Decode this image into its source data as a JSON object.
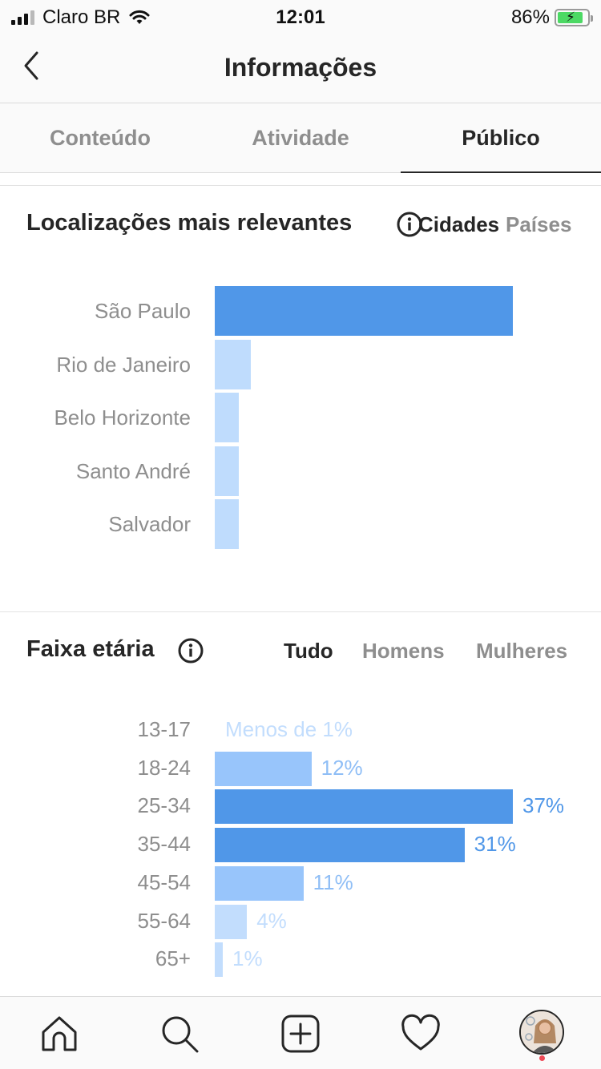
{
  "status_bar": {
    "carrier": "Claro BR",
    "time": "12:01",
    "battery_percent": "86%",
    "battery_level": 0.86
  },
  "nav": {
    "title": "Informações"
  },
  "tabs": [
    {
      "label": "Conteúdo",
      "active": false
    },
    {
      "label": "Atividade",
      "active": false
    },
    {
      "label": "Público",
      "active": true
    }
  ],
  "locations": {
    "title": "Localizações mais relevantes",
    "filters": [
      {
        "label": "Cidades",
        "active": true
      },
      {
        "label": "Países",
        "active": false
      }
    ],
    "cities": [
      "São Paulo",
      "Rio de Janeiro",
      "Belo Horizonte",
      "Santo André",
      "Salvador"
    ]
  },
  "age": {
    "title": "Faixa etária",
    "filters": [
      {
        "label": "Tudo",
        "active": true
      },
      {
        "label": "Homens",
        "active": false
      },
      {
        "label": "Mulheres",
        "active": false
      }
    ],
    "ranges": [
      "13-17",
      "18-24",
      "25-34",
      "35-44",
      "45-54",
      "55-64",
      "65+"
    ],
    "value_labels": [
      "Menos de 1%",
      "12%",
      "37%",
      "31%",
      "11%",
      "4%",
      "1%"
    ]
  },
  "chart_data": [
    {
      "type": "bar",
      "orientation": "horizontal",
      "categories": [
        "São Paulo",
        "Rio de Janeiro",
        "Belo Horizonte",
        "Santo André",
        "Salvador"
      ],
      "values": [
        100,
        12,
        8,
        8,
        8
      ],
      "highlight_color": "#5097e8",
      "base_color": "#bfdcfd"
    },
    {
      "type": "bar",
      "orientation": "horizontal",
      "categories": [
        "13-17",
        "18-24",
        "25-34",
        "35-44",
        "45-54",
        "55-64",
        "65+"
      ],
      "values": [
        0,
        12,
        37,
        31,
        11,
        4,
        1
      ],
      "data_labels": [
        "Menos de 1%",
        "12%",
        "37%",
        "31%",
        "11%",
        "4%",
        "1%"
      ],
      "highlight_color": "#5097e8",
      "base_color": "#98c5fb",
      "faint_color": "#c2ddfd"
    }
  ],
  "tab_bar": [
    {
      "icon": "home-icon"
    },
    {
      "icon": "search-icon"
    },
    {
      "icon": "new-post-icon"
    },
    {
      "icon": "heart-icon"
    },
    {
      "icon": "profile-avatar"
    }
  ]
}
